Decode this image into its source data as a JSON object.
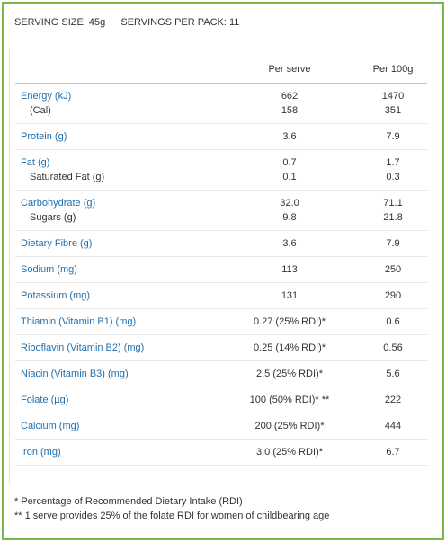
{
  "serving": {
    "size": "SERVING SIZE: 45g",
    "per_pack": "SERVINGS PER PACK: 11"
  },
  "table": {
    "headers": [
      "Per serve",
      "Per 100g"
    ],
    "groups": [
      {
        "rows": [
          [
            "Energy (kJ)",
            "662",
            "1470"
          ],
          [
            "(Cal)",
            "158",
            "351"
          ]
        ]
      },
      {
        "rows": [
          [
            "Protein (g)",
            "3.6",
            "7.9"
          ]
        ]
      },
      {
        "rows": [
          [
            "Fat (g)",
            "0.7",
            "1.7"
          ],
          [
            "Saturated Fat (g)",
            "0.1",
            "0.3"
          ]
        ]
      },
      {
        "rows": [
          [
            "Carbohydrate (g)",
            "32.0",
            "71.1"
          ],
          [
            "Sugars (g)",
            "9.8",
            "21.8"
          ]
        ]
      },
      {
        "rows": [
          [
            "Dietary Fibre (g)",
            "3.6",
            "7.9"
          ]
        ]
      },
      {
        "rows": [
          [
            "Sodium (mg)",
            "113",
            "250"
          ]
        ]
      },
      {
        "rows": [
          [
            "Potassium (mg)",
            "131",
            "290"
          ]
        ]
      },
      {
        "rows": [
          [
            "Thiamin (Vitamin B1) (mg)",
            "0.27 (25% RDI)*",
            "0.6"
          ]
        ]
      },
      {
        "rows": [
          [
            "Riboflavin (Vitamin B2) (mg)",
            "0.25 (14% RDI)*",
            "0.56"
          ]
        ]
      },
      {
        "rows": [
          [
            "Niacin (Vitamin B3) (mg)",
            "2.5 (25% RDI)*",
            "5.6"
          ]
        ]
      },
      {
        "rows": [
          [
            "Folate (µg)",
            "100 (50% RDI)* **",
            "222"
          ]
        ]
      },
      {
        "rows": [
          [
            "Calcium (mg)",
            "200 (25% RDI)*",
            "444"
          ]
        ]
      },
      {
        "rows": [
          [
            "Iron (mg)",
            "3.0 (25% RDI)*",
            "6.7"
          ]
        ]
      }
    ]
  },
  "footnotes": [
    "* Percentage of Recommended Dietary Intake (RDI)",
    "** 1 serve provides 25% of the folate RDI for women of childbearing age"
  ]
}
